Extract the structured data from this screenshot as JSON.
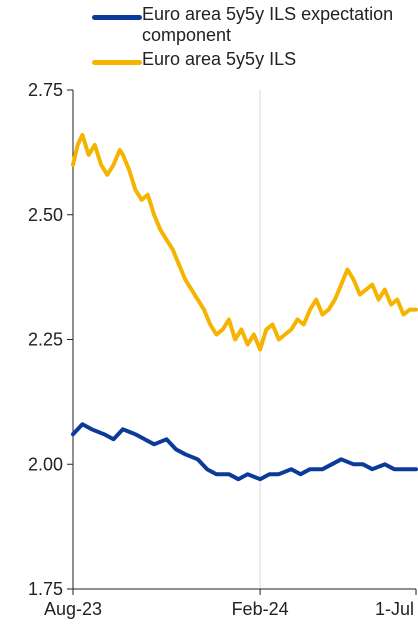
{
  "chart_data": {
    "type": "line",
    "title": "",
    "xlabel": "",
    "ylabel": "",
    "ylim": [
      1.75,
      2.75
    ],
    "yticks": [
      "1.75",
      "2.00",
      "2.25",
      "2.50",
      "2.75"
    ],
    "xticks": [
      "Aug-23",
      "Feb-24",
      "1-Jul"
    ],
    "xtick_positions": [
      0,
      6,
      11
    ],
    "xlim": [
      0,
      11
    ],
    "grid": "vertical line at Feb-24",
    "legend_position": "top",
    "series": [
      {
        "name": "Euro area 5y5y ILS expectation component",
        "color": "#0b3a9a",
        "x": [
          0,
          0.3,
          0.6,
          1.0,
          1.3,
          1.6,
          2.0,
          2.3,
          2.6,
          3.0,
          3.3,
          3.6,
          4.0,
          4.3,
          4.6,
          5.0,
          5.3,
          5.6,
          6.0,
          6.3,
          6.6,
          7.0,
          7.3,
          7.6,
          8.0,
          8.3,
          8.6,
          9.0,
          9.3,
          9.6,
          10.0,
          10.3,
          10.6,
          11.0
        ],
        "values": [
          2.06,
          2.08,
          2.07,
          2.06,
          2.05,
          2.07,
          2.06,
          2.05,
          2.04,
          2.05,
          2.03,
          2.02,
          2.01,
          1.99,
          1.98,
          1.98,
          1.97,
          1.98,
          1.97,
          1.98,
          1.98,
          1.99,
          1.98,
          1.99,
          1.99,
          2.0,
          2.01,
          2.0,
          2.0,
          1.99,
          2.0,
          1.99,
          1.99,
          1.99
        ]
      },
      {
        "name": "Euro area 5y5y ILS",
        "color": "#f5b400",
        "x": [
          0,
          0.15,
          0.3,
          0.5,
          0.7,
          0.9,
          1.1,
          1.3,
          1.5,
          1.6,
          1.8,
          2.0,
          2.2,
          2.4,
          2.6,
          2.8,
          3.0,
          3.2,
          3.4,
          3.6,
          3.8,
          4.0,
          4.2,
          4.4,
          4.6,
          4.8,
          5.0,
          5.2,
          5.4,
          5.6,
          5.8,
          6.0,
          6.2,
          6.4,
          6.6,
          6.8,
          7.0,
          7.2,
          7.4,
          7.6,
          7.8,
          8.0,
          8.2,
          8.4,
          8.6,
          8.8,
          9.0,
          9.2,
          9.4,
          9.6,
          9.8,
          10.0,
          10.2,
          10.4,
          10.6,
          10.8,
          11.0
        ],
        "values": [
          2.6,
          2.64,
          2.66,
          2.62,
          2.64,
          2.6,
          2.58,
          2.6,
          2.63,
          2.62,
          2.59,
          2.55,
          2.53,
          2.54,
          2.5,
          2.47,
          2.45,
          2.43,
          2.4,
          2.37,
          2.35,
          2.33,
          2.31,
          2.28,
          2.26,
          2.27,
          2.29,
          2.25,
          2.27,
          2.24,
          2.26,
          2.23,
          2.27,
          2.28,
          2.25,
          2.26,
          2.27,
          2.29,
          2.28,
          2.31,
          2.33,
          2.3,
          2.31,
          2.33,
          2.36,
          2.39,
          2.37,
          2.34,
          2.35,
          2.36,
          2.33,
          2.35,
          2.32,
          2.33,
          2.3,
          2.31,
          2.31
        ]
      }
    ]
  }
}
